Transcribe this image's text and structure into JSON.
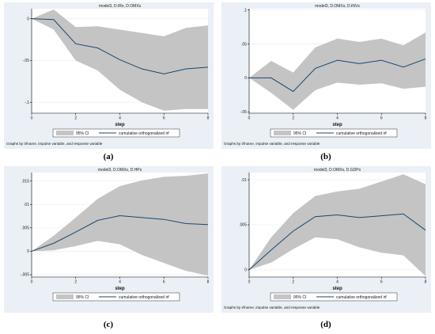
{
  "chart_data": [
    {
      "type": "area",
      "title": "model3, D.IRs, D.OMXs",
      "xlabel": "step",
      "x": [
        0,
        1,
        2,
        3,
        4,
        5,
        6,
        7,
        8
      ],
      "xticks": [
        "0",
        "2",
        "4",
        "6",
        "8"
      ],
      "xlim": [
        0,
        8
      ],
      "yticks": [
        0,
        -0.05,
        -0.1
      ],
      "ytick_labels": [
        "0",
        "-.05",
        "-.1"
      ],
      "ylim": [
        -0.113,
        0.012
      ],
      "series": [
        {
          "name": "95% CI",
          "kind": "band",
          "lower": [
            0,
            -0.013,
            -0.05,
            -0.062,
            -0.085,
            -0.1,
            -0.11,
            -0.108,
            -0.108
          ],
          "upper": [
            0,
            0.011,
            -0.01,
            -0.009,
            -0.013,
            -0.017,
            -0.021,
            -0.011,
            -0.008
          ]
        },
        {
          "name": "cumulative orthogonalized irf",
          "kind": "line",
          "values": [
            0,
            -0.001,
            -0.03,
            -0.035,
            -0.049,
            -0.06,
            -0.066,
            -0.06,
            -0.058
          ]
        }
      ],
      "legend": "bottom",
      "note": "Graphs by irfname, impulse variable, and response variable",
      "caption": "(a)"
    },
    {
      "type": "area",
      "title": "model3, D.OMXs, D.INVs",
      "xlabel": "step",
      "x": [
        0,
        1,
        2,
        3,
        4,
        5,
        6,
        7,
        8
      ],
      "xticks": [
        "0",
        "2",
        "4",
        "6",
        "8"
      ],
      "xlim": [
        0,
        8
      ],
      "yticks": [
        0.1,
        0.05,
        0,
        -0.05
      ],
      "ytick_labels": [
        ".1",
        ".05",
        "0",
        "-.05"
      ],
      "ylim": [
        -0.052,
        0.102
      ],
      "series": [
        {
          "name": "95% CI",
          "kind": "band",
          "lower": [
            0,
            -0.022,
            -0.047,
            -0.018,
            -0.007,
            -0.01,
            -0.008,
            -0.016,
            -0.013
          ],
          "upper": [
            0,
            0.025,
            0.008,
            0.045,
            0.058,
            0.053,
            0.058,
            0.048,
            0.067
          ]
        },
        {
          "name": "cumulative orthogonalized irf",
          "kind": "line",
          "values": [
            0,
            0,
            -0.02,
            0.014,
            0.026,
            0.021,
            0.026,
            0.016,
            0.028
          ]
        }
      ],
      "legend": "bottom",
      "note": "Graphs by irfname, impulse variable, and response variable",
      "caption": "(b)"
    },
    {
      "type": "area",
      "title": "model3, D.OMXs, D.HPs",
      "xlabel": "step",
      "x": [
        0,
        1,
        2,
        3,
        4,
        5,
        6,
        7,
        8
      ],
      "xticks": [
        "0",
        "2",
        "4",
        "6",
        "8"
      ],
      "xlim": [
        0,
        8
      ],
      "yticks": [
        0.015,
        0.01,
        0.005,
        0,
        -0.005
      ],
      "ytick_labels": [
        ".015",
        ".01",
        ".005",
        "0",
        "-.005"
      ],
      "ylim": [
        -0.0055,
        0.0168
      ],
      "series": [
        {
          "name": "95% CI",
          "kind": "band",
          "lower": [
            0,
            0.0002,
            0.0011,
            0.0022,
            0.0015,
            -0.0008,
            -0.0025,
            -0.0042,
            -0.0052
          ],
          "upper": [
            0,
            0.0033,
            0.0072,
            0.0112,
            0.0139,
            0.0151,
            0.0159,
            0.0161,
            0.0166
          ]
        },
        {
          "name": "cumulative orthogonalized irf",
          "kind": "line",
          "values": [
            0,
            0.0017,
            0.0041,
            0.0066,
            0.0076,
            0.0072,
            0.0068,
            0.0059,
            0.0057
          ]
        }
      ],
      "legend": "bottom",
      "caption": "(c)"
    },
    {
      "type": "area",
      "title": "model3, D.OMXs, D.GDPs",
      "xlabel": "step",
      "x": [
        0,
        1,
        2,
        3,
        4,
        5,
        6,
        7,
        8
      ],
      "xticks": [
        "0",
        "2",
        "4",
        "6",
        "8"
      ],
      "xlim": [
        0,
        8
      ],
      "yticks": [
        0.01,
        0.005,
        0
      ],
      "ytick_labels": [
        ".01",
        ".005",
        "0"
      ],
      "ylim": [
        -0.0008,
        0.0108
      ],
      "series": [
        {
          "name": "95% CI",
          "kind": "band",
          "lower": [
            0,
            0.0008,
            0.0023,
            0.0036,
            0.0034,
            0.0025,
            0.0019,
            0.0016,
            -0.0007
          ],
          "upper": [
            0,
            0.0036,
            0.0063,
            0.0082,
            0.0087,
            0.009,
            0.0098,
            0.0106,
            0.0095
          ]
        },
        {
          "name": "cumulative orthogonalized irf",
          "kind": "line",
          "values": [
            0,
            0.0022,
            0.0043,
            0.0059,
            0.0061,
            0.0058,
            0.006,
            0.0062,
            0.0044
          ]
        }
      ],
      "legend": "bottom",
      "note": "Graphs by irfname, impulse variable, and response variable",
      "caption": "(d)"
    }
  ]
}
